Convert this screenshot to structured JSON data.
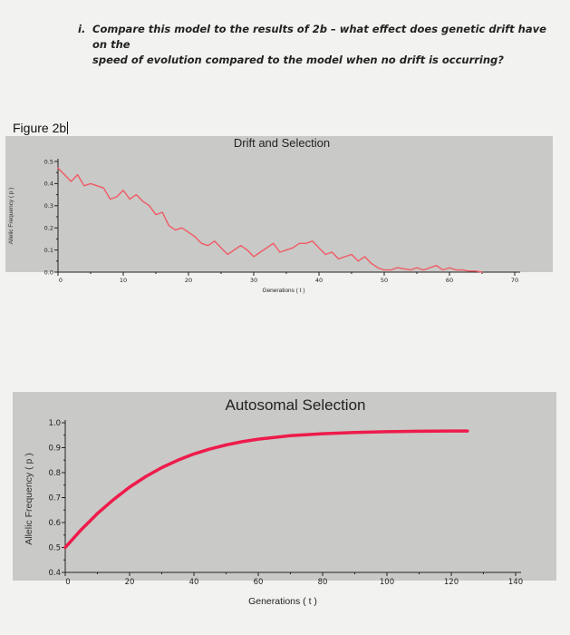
{
  "question": {
    "number": "i.",
    "line1": "Compare this model to the results of 2b – what effect does genetic drift have on the",
    "line2": "speed of evolution compared to the model when no drift is occurring?"
  },
  "figure_label": "Figure 2b",
  "colors": {
    "line": "#f05a64",
    "line2": "#ee1b4b",
    "plot_bg": "#c9c9c7"
  },
  "chart_data": [
    {
      "type": "line",
      "title": "Drift and Selection",
      "xlabel": "Generations ( t )",
      "ylabel": "Allelic Frequency ( p )",
      "xlim": [
        0,
        70
      ],
      "ylim": [
        0,
        0.5
      ],
      "xticks": [
        0,
        10,
        20,
        30,
        40,
        50,
        60,
        70
      ],
      "yticks": [
        0.0,
        0.1,
        0.2,
        0.3,
        0.4,
        0.5
      ],
      "grid": false,
      "series": [
        {
          "x": [
            0,
            1,
            2,
            3,
            4,
            5,
            6,
            7,
            8,
            9,
            10,
            11,
            12,
            13,
            14,
            15,
            16,
            17,
            18,
            19,
            20,
            21,
            22,
            23,
            24,
            25,
            26,
            27,
            28,
            29,
            30,
            31,
            32,
            33,
            34,
            35,
            36,
            37,
            38,
            39,
            40,
            41,
            42,
            43,
            44,
            45,
            46,
            47,
            48,
            49,
            50,
            51,
            52,
            53,
            54,
            55,
            56,
            57,
            58,
            59,
            60,
            61,
            62,
            63,
            64,
            65
          ],
          "y": [
            0.47,
            0.44,
            0.41,
            0.44,
            0.39,
            0.4,
            0.39,
            0.38,
            0.33,
            0.34,
            0.37,
            0.33,
            0.35,
            0.32,
            0.3,
            0.26,
            0.27,
            0.21,
            0.19,
            0.2,
            0.18,
            0.16,
            0.13,
            0.12,
            0.14,
            0.11,
            0.08,
            0.1,
            0.12,
            0.1,
            0.07,
            0.09,
            0.11,
            0.13,
            0.09,
            0.1,
            0.11,
            0.13,
            0.13,
            0.14,
            0.11,
            0.08,
            0.09,
            0.06,
            0.07,
            0.08,
            0.05,
            0.07,
            0.04,
            0.02,
            0.01,
            0.01,
            0.02,
            0.015,
            0.01,
            0.02,
            0.01,
            0.02,
            0.03,
            0.01,
            0.02,
            0.01,
            0.01,
            0.005,
            0.005,
            0.0
          ]
        }
      ]
    },
    {
      "type": "line",
      "title": "Autosomal Selection",
      "xlabel": "Generations ( t )",
      "ylabel": "Allelic Frequency ( p )",
      "xlim": [
        0,
        140
      ],
      "ylim": [
        0.4,
        1.0
      ],
      "xticks": [
        0,
        20,
        40,
        60,
        80,
        100,
        120,
        140
      ],
      "yticks": [
        0.4,
        0.5,
        0.6,
        0.7,
        0.8,
        0.9,
        1.0
      ],
      "grid": false,
      "series": [
        {
          "x": [
            0,
            5,
            10,
            15,
            20,
            25,
            30,
            35,
            40,
            45,
            50,
            55,
            60,
            70,
            80,
            90,
            100,
            110,
            120,
            125
          ],
          "y": [
            0.5,
            0.572,
            0.636,
            0.692,
            0.742,
            0.784,
            0.82,
            0.85,
            0.875,
            0.895,
            0.911,
            0.924,
            0.934,
            0.948,
            0.956,
            0.961,
            0.964,
            0.966,
            0.967,
            0.967
          ]
        }
      ]
    }
  ]
}
